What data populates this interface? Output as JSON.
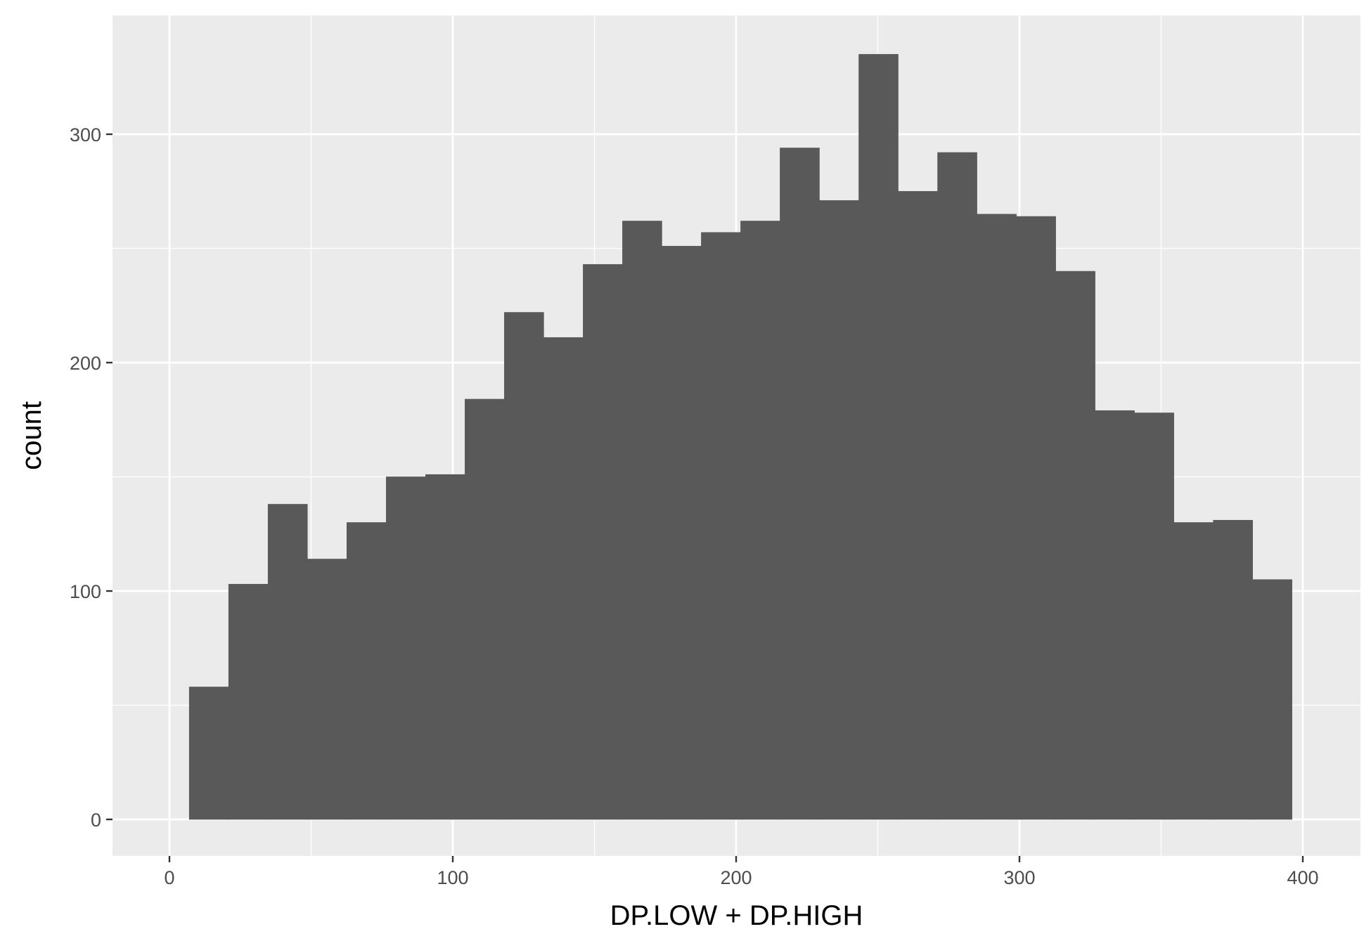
{
  "chart_data": {
    "type": "bar",
    "subtype": "histogram",
    "title": "",
    "xlabel": "DP.LOW + DP.HIGH",
    "ylabel": "count",
    "xlim": [
      -20,
      420
    ],
    "ylim": [
      -17,
      353
    ],
    "x_major_ticks": [
      0,
      100,
      200,
      300,
      400
    ],
    "y_major_ticks": [
      0,
      100,
      200,
      300
    ],
    "x_minor_ticks": [
      50,
      150,
      250,
      350
    ],
    "y_minor_ticks": [
      50,
      150,
      250
    ],
    "grid": true,
    "legend": "none",
    "bins": [
      {
        "x0": 7.0,
        "x1": 20.9,
        "count": 58
      },
      {
        "x0": 20.9,
        "x1": 34.8,
        "count": 103
      },
      {
        "x0": 34.8,
        "x1": 48.7,
        "count": 138
      },
      {
        "x0": 48.7,
        "x1": 62.6,
        "count": 114
      },
      {
        "x0": 62.6,
        "x1": 76.5,
        "count": 130
      },
      {
        "x0": 76.5,
        "x1": 90.4,
        "count": 150
      },
      {
        "x0": 90.4,
        "x1": 104.3,
        "count": 151
      },
      {
        "x0": 104.3,
        "x1": 118.2,
        "count": 184
      },
      {
        "x0": 118.2,
        "x1": 132.1,
        "count": 222
      },
      {
        "x0": 132.1,
        "x1": 146.0,
        "count": 211
      },
      {
        "x0": 146.0,
        "x1": 159.9,
        "count": 243
      },
      {
        "x0": 159.9,
        "x1": 173.8,
        "count": 262
      },
      {
        "x0": 173.8,
        "x1": 187.7,
        "count": 251
      },
      {
        "x0": 187.7,
        "x1": 201.6,
        "count": 257
      },
      {
        "x0": 201.6,
        "x1": 215.5,
        "count": 262
      },
      {
        "x0": 215.5,
        "x1": 229.4,
        "count": 294
      },
      {
        "x0": 229.4,
        "x1": 243.3,
        "count": 271
      },
      {
        "x0": 243.3,
        "x1": 257.2,
        "count": 335
      },
      {
        "x0": 257.2,
        "x1": 271.1,
        "count": 275
      },
      {
        "x0": 271.1,
        "x1": 285.0,
        "count": 292
      },
      {
        "x0": 285.0,
        "x1": 298.9,
        "count": 265
      },
      {
        "x0": 298.9,
        "x1": 312.8,
        "count": 264
      },
      {
        "x0": 312.8,
        "x1": 326.7,
        "count": 240
      },
      {
        "x0": 326.7,
        "x1": 340.6,
        "count": 179
      },
      {
        "x0": 340.6,
        "x1": 354.5,
        "count": 178
      },
      {
        "x0": 354.5,
        "x1": 368.4,
        "count": 130
      },
      {
        "x0": 368.4,
        "x1": 382.3,
        "count": 131
      },
      {
        "x0": 382.3,
        "x1": 396.2,
        "count": 105
      }
    ],
    "colors": {
      "panel_background": "#ebebeb",
      "grid_line": "#ffffff",
      "bar_fill": "#595959",
      "tick_mark": "#333333",
      "tick_label": "#4d4d4d",
      "axis_title": "#000000"
    }
  }
}
